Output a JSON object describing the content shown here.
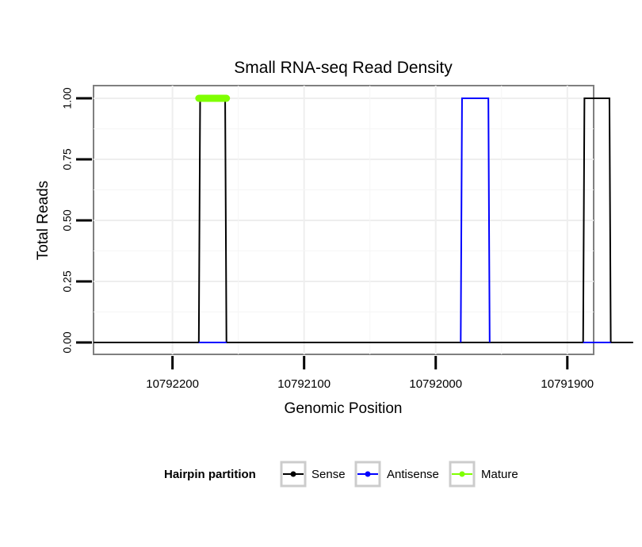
{
  "chart_data": {
    "type": "line",
    "title": "Small RNA-seq Read Density",
    "xlabel": "Genomic Position",
    "ylabel": "Total Reads",
    "xlim": [
      10792260,
      10791880
    ],
    "ylim": [
      0,
      1
    ],
    "x_reversed": true,
    "grid": true,
    "x_ticks": [
      10792200,
      10792100,
      10792000,
      10791900
    ],
    "x_tick_labels": [
      "10792200",
      "10792100",
      "10792000",
      "10791900"
    ],
    "y_ticks": [
      0,
      0.25,
      0.5,
      0.75,
      1
    ],
    "y_tick_labels": [
      "0.00",
      "0.25",
      "0.50",
      "0.75",
      "1.00"
    ],
    "series": [
      {
        "name": "Sense",
        "color": "#000000",
        "points": [
          [
            10792260,
            0
          ],
          [
            10792180,
            0
          ],
          [
            10792179,
            1
          ],
          [
            10792160,
            1
          ],
          [
            10792159,
            0
          ],
          [
            10791981,
            0
          ],
          [
            10791980,
            0
          ],
          [
            10791960,
            0
          ],
          [
            10791959,
            0
          ],
          [
            10791888,
            0
          ],
          [
            10791887,
            1
          ],
          [
            10791868,
            1
          ],
          [
            10791867,
            0
          ],
          [
            10791850,
            0
          ]
        ]
      },
      {
        "name": "Antisense",
        "color": "#0000ff",
        "points": [
          [
            10792180,
            0
          ],
          [
            10792159,
            0
          ],
          [
            10791981,
            0
          ],
          [
            10791980,
            1
          ],
          [
            10791960,
            1
          ],
          [
            10791959,
            0
          ],
          [
            10791888,
            0
          ],
          [
            10791867,
            0
          ]
        ]
      },
      {
        "name": "Mature",
        "color": "#7fff00",
        "points": [
          [
            10792180,
            1
          ],
          [
            10792159,
            1
          ]
        ]
      }
    ],
    "legend": {
      "title": "Hairpin partition",
      "placement": "bottom",
      "entries": [
        {
          "label": "Sense",
          "color": "#000000"
        },
        {
          "label": "Antisense",
          "color": "#0000ff"
        },
        {
          "label": "Mature",
          "color": "#7fff00"
        }
      ]
    }
  }
}
